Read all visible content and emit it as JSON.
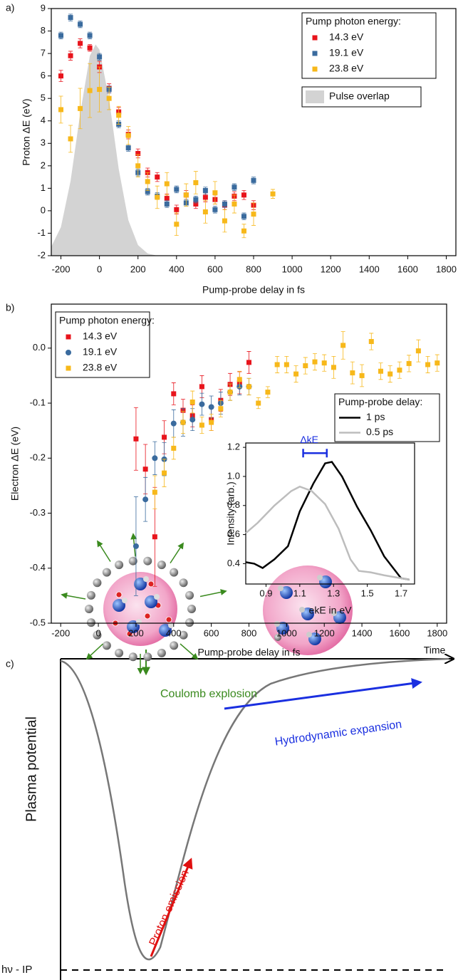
{
  "panel_labels": [
    "a)",
    "b)",
    "c)"
  ],
  "chart_data": [
    {
      "type": "scatter",
      "xlabel": "Pump-probe delay in fs",
      "ylabel": "Proton ΔE (eV)",
      "xlim": [
        -250,
        1850
      ],
      "ylim": [
        -2,
        9
      ],
      "xticks": [
        -200,
        0,
        200,
        400,
        600,
        800,
        1000,
        1200,
        1400,
        1600,
        1800
      ],
      "yticks": [
        -2,
        -1,
        0,
        1,
        2,
        3,
        4,
        5,
        6,
        7,
        8,
        9
      ],
      "legend": "upper right",
      "legend_title": "Pump photon energy:",
      "series": [
        {
          "name": "14.3 eV",
          "color": "#e8141c",
          "marker": "square",
          "x": [
            -200,
            -150,
            -100,
            -50,
            0,
            50,
            100,
            150,
            200,
            250,
            300,
            350,
            400,
            450,
            500,
            550,
            600,
            650,
            700,
            750,
            800
          ],
          "values": [
            6.0,
            6.9,
            7.45,
            7.25,
            6.4,
            5.45,
            4.4,
            3.4,
            2.55,
            1.7,
            1.5,
            0.55,
            0.05,
            0.7,
            0.3,
            0.6,
            0.5,
            0.25,
            0.65,
            0.7,
            0.25
          ],
          "errors": [
            0.25,
            0.2,
            0.2,
            0.15,
            0.25,
            0.2,
            0.2,
            0.2,
            0.2,
            0.2,
            0.2,
            0.2,
            0.2,
            0.2,
            0.2,
            0.2,
            0.2,
            0.2,
            0.2,
            0.2,
            0.2
          ]
        },
        {
          "name": "19.1 eV",
          "color": "#3a6b9e",
          "marker": "square",
          "x": [
            -200,
            -150,
            -100,
            -50,
            0,
            50,
            100,
            150,
            200,
            250,
            300,
            350,
            400,
            450,
            500,
            550,
            600,
            650,
            700,
            750,
            800
          ],
          "values": [
            7.8,
            8.6,
            8.3,
            7.8,
            6.85,
            5.4,
            3.85,
            2.8,
            1.7,
            0.85,
            0.65,
            0.3,
            0.95,
            0.35,
            0.5,
            0.9,
            0.05,
            0.3,
            1.05,
            -0.25,
            1.35
          ],
          "errors": [
            0.15,
            0.15,
            0.15,
            0.15,
            0.15,
            0.15,
            0.15,
            0.15,
            0.15,
            0.15,
            0.15,
            0.15,
            0.15,
            0.15,
            0.15,
            0.15,
            0.15,
            0.15,
            0.15,
            0.15,
            0.15
          ]
        },
        {
          "name": "23.8 eV",
          "color": "#f7b81a",
          "marker": "square",
          "x": [
            -200,
            -150,
            -100,
            -50,
            0,
            50,
            100,
            150,
            200,
            250,
            300,
            350,
            400,
            450,
            500,
            550,
            600,
            650,
            700,
            750,
            800,
            900
          ],
          "values": [
            4.5,
            3.2,
            4.55,
            5.35,
            5.4,
            5.0,
            4.25,
            3.35,
            2.0,
            1.3,
            0.6,
            1.2,
            -0.6,
            0.7,
            1.25,
            -0.05,
            0.8,
            -0.45,
            0.3,
            -0.9,
            -0.15,
            0.75
          ],
          "errors": [
            0.6,
            0.6,
            0.9,
            1.2,
            1.0,
            0.5,
            0.4,
            0.4,
            0.5,
            0.4,
            0.5,
            0.5,
            0.5,
            0.5,
            0.5,
            0.5,
            0.5,
            0.5,
            0.4,
            0.3,
            0.5,
            0.2
          ]
        },
        {
          "name": "Pulse overlap",
          "type": "area",
          "color": "#d3d3d3",
          "x": [
            -250,
            -200,
            -150,
            -100,
            -50,
            -20,
            0,
            50,
            100,
            150,
            200,
            250,
            300
          ],
          "values": [
            -1.6,
            -0.73,
            1.32,
            4.33,
            6.89,
            7.4,
            7.17,
            4.96,
            1.86,
            -0.42,
            -1.53,
            -1.9,
            -2
          ]
        }
      ]
    },
    {
      "type": "scatter",
      "xlabel": "Pump-probe delay in fs",
      "ylabel": "Electron ΔE (eV)",
      "xlim": [
        -250,
        1850
      ],
      "ylim": [
        -0.5,
        0.08
      ],
      "xticks": [
        -200,
        0,
        200,
        400,
        600,
        800,
        1000,
        1200,
        1400,
        1600,
        1800
      ],
      "yticks": [
        -0.5,
        -0.4,
        -0.3,
        -0.2,
        -0.1,
        {
          "value": 0,
          "label": "0.0"
        }
      ],
      "legend": "upper left",
      "legend_title": "Pump photon energy:",
      "series": [
        {
          "name": "14.3 eV",
          "color": "#e8141c",
          "marker": "square",
          "x": [
            200,
            250,
            300,
            350,
            400,
            450,
            500,
            550,
            600,
            650,
            700,
            750,
            800
          ],
          "values": [
            -0.165,
            -0.22,
            -0.343,
            -0.162,
            -0.083,
            -0.113,
            -0.123,
            -0.07,
            -0.13,
            -0.095,
            -0.066,
            -0.063,
            -0.026
          ],
          "errors": [
            0.057,
            0.045,
            0.09,
            0.03,
            0.02,
            0.02,
            0.02,
            0.02,
            0.02,
            0.02,
            0.02,
            0.02,
            0.02
          ]
        },
        {
          "name": "19.1 eV",
          "color": "#3a6b9e",
          "marker": "circle",
          "x": [
            200,
            250,
            300,
            350,
            400,
            450,
            500,
            550,
            600,
            650,
            700,
            750,
            800
          ],
          "values": [
            -0.36,
            -0.275,
            -0.2,
            -0.202,
            -0.137,
            -0.135,
            -0.13,
            -0.102,
            -0.107,
            -0.1,
            -0.08,
            -0.07,
            -0.07
          ],
          "errors": [
            0.09,
            0.04,
            0.03,
            0.03,
            0.025,
            0.025,
            0.02,
            0.02,
            0.02,
            0.02,
            0.015,
            0.015,
            0.015
          ]
        },
        {
          "name": "23.8 eV",
          "color": "#f7b81a",
          "marker": "square",
          "x": [
            300,
            350,
            400,
            450,
            500,
            550,
            600,
            650,
            700,
            750,
            800,
            850,
            900,
            950,
            1000,
            1050,
            1100,
            1150,
            1200,
            1250,
            1300,
            1350,
            1400,
            1450,
            1500,
            1550,
            1600,
            1650,
            1700,
            1750,
            1800
          ],
          "values": [
            -0.262,
            -0.227,
            -0.182,
            -0.135,
            -0.098,
            -0.14,
            -0.135,
            -0.11,
            -0.08,
            -0.057,
            -0.07,
            -0.1,
            -0.08,
            -0.03,
            -0.03,
            -0.047,
            -0.032,
            -0.025,
            -0.027,
            -0.035,
            0.005,
            -0.045,
            -0.05,
            0.012,
            -0.042,
            -0.047,
            -0.04,
            -0.028,
            -0.005,
            -0.03,
            -0.027
          ],
          "errors": [
            0.03,
            0.025,
            0.02,
            0.02,
            0.02,
            0.015,
            0.015,
            0.015,
            0.015,
            0.015,
            0.015,
            0.01,
            0.01,
            0.015,
            0.015,
            0.015,
            0.015,
            0.015,
            0.015,
            0.02,
            0.025,
            0.02,
            0.02,
            0.015,
            0.015,
            0.015,
            0.015,
            0.015,
            0.02,
            0.015,
            0.015
          ]
        }
      ]
    },
    {
      "type": "line",
      "xlabel": "ekE in eV",
      "ylabel": "Intensity (arb.)",
      "xlim": [
        0.78,
        1.78
      ],
      "ylim": [
        0.26,
        1.23
      ],
      "xticks": [
        0.9,
        1.1,
        1.3,
        1.5,
        1.7
      ],
      "yticks": [
        0.4,
        0.6,
        0.8,
        {
          "value": 1,
          "label": "1.0"
        },
        1.2
      ],
      "legend": "upper right",
      "legend_title": "Pump-probe delay:",
      "annotation": "ΔkE",
      "series": [
        {
          "name": "1 ps",
          "color": "#000000",
          "x": [
            0.78,
            0.83,
            0.88,
            0.95,
            1.03,
            1.1,
            1.18,
            1.25,
            1.29,
            1.35,
            1.44,
            1.52,
            1.6,
            1.7,
            1.75
          ],
          "values": [
            0.41,
            0.4,
            0.37,
            0.43,
            0.52,
            0.76,
            0.95,
            1.09,
            1.1,
            1.0,
            0.79,
            0.63,
            0.45,
            0.3,
            0.29
          ]
        },
        {
          "name": "0.5 ps",
          "color": "#bdbdbd",
          "x": [
            0.78,
            0.85,
            0.95,
            1.05,
            1.1,
            1.17,
            1.25,
            1.33,
            1.4,
            1.45,
            1.52,
            1.6,
            1.7,
            1.75
          ],
          "values": [
            0.61,
            0.68,
            0.8,
            0.9,
            0.93,
            0.9,
            0.81,
            0.64,
            0.43,
            0.35,
            0.34,
            0.32,
            0.3,
            0.29
          ]
        }
      ]
    }
  ],
  "diagram": {
    "time_label": "Time",
    "y_label": "Plasma potential",
    "coulomb": "Coulomb explosion",
    "proton": "Proton emission",
    "hydro": "Hydrodynamic expansion",
    "level": "hν - IP"
  }
}
